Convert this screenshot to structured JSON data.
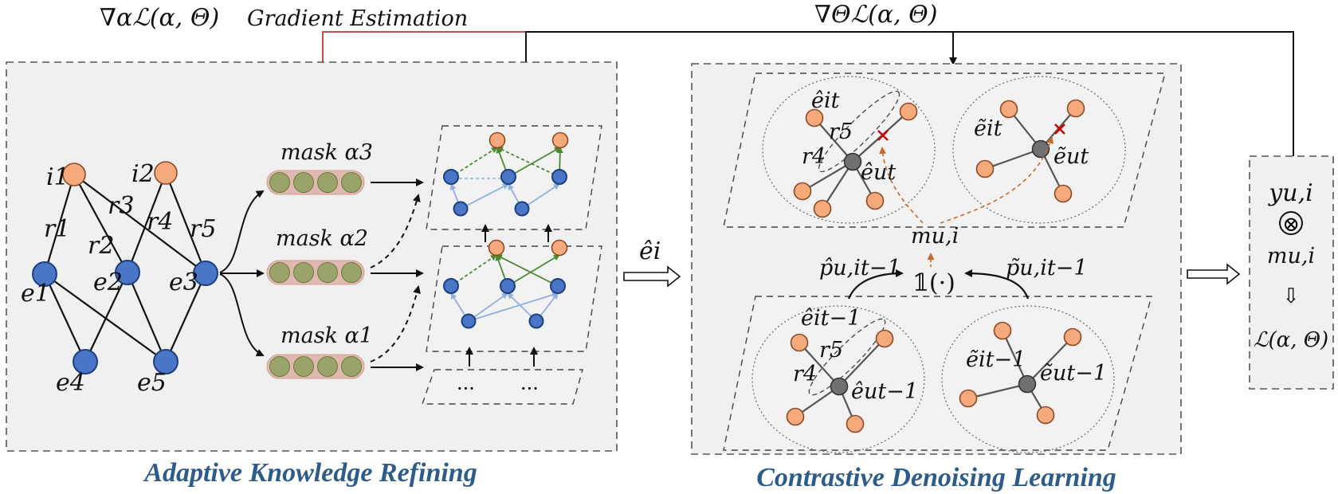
{
  "colors": {
    "caption": "#2e5c8a",
    "alpha_gradient_line": "#c0504d",
    "user_node": "#4a76c8",
    "item_node": "#f6a97a",
    "center_node": "#707070",
    "green_edge": "#4a8a2f",
    "light_blue_edge": "#8fb0e0",
    "cut_mark": "#cc0000",
    "dashed_orange_arrow": "#c8692a",
    "mask_bar": "#e0b8b0",
    "mask_cell": "#9aa36a"
  },
  "top": {
    "alpha_gradient": "∇αℒ(α, Θ)",
    "gradient_estimation": "Gradient Estimation",
    "theta_gradient": "∇Θℒ(α, Θ)"
  },
  "graph": {
    "items": [
      "i1",
      "i2"
    ],
    "relations": [
      "r1",
      "r2",
      "r3",
      "r4",
      "r5"
    ],
    "entities": [
      "e1",
      "e2",
      "e3",
      "e4",
      "e5"
    ]
  },
  "masks": [
    "mask α3",
    "mask α2",
    "mask α1"
  ],
  "ellipsis": "···",
  "flow_label": "êi",
  "contrastive": {
    "top_left": {
      "item": "êit",
      "r5": "r5",
      "r4": "r4",
      "user": "êut"
    },
    "top_right": {
      "item": "ẽit",
      "user": "ẽut"
    },
    "mask": "mu,i",
    "indicator": "𝟙(·)",
    "p_hat": "p̂u,it−1",
    "p_tilde": "p̃u,it−1",
    "bottom_left": {
      "item": "êit−1",
      "r5": "r5",
      "r4": "r4",
      "user": "êut−1"
    },
    "bottom_right": {
      "item": "ẽit−1",
      "user": "ẽut−1"
    }
  },
  "loss_box": {
    "y": "yu,i",
    "otimes": "⊗",
    "m": "mu,i",
    "down_arrow": "⇩",
    "loss": "ℒ(α, Θ)"
  },
  "captions": {
    "left": "Adaptive Knowledge Refining",
    "right": "Contrastive Denoising Learning"
  }
}
